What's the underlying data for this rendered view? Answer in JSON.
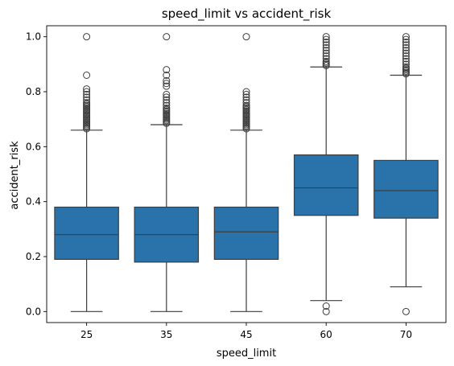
{
  "chart_data": {
    "type": "box",
    "title": "speed_limit vs accident_risk",
    "xlabel": "speed_limit",
    "ylabel": "accident_risk",
    "categories": [
      "25",
      "35",
      "45",
      "60",
      "70"
    ],
    "ylim": [
      -0.04,
      1.04
    ],
    "yticks": [
      "0.0",
      "0.2",
      "0.4",
      "0.6",
      "0.8",
      "1.0"
    ],
    "ytick_values": [
      0.0,
      0.2,
      0.4,
      0.6,
      0.8,
      1.0
    ],
    "grid": false,
    "legend": "none",
    "box_color": "#2a73aa",
    "edge_color": "#3d3d3d",
    "boxes": [
      {
        "category": "25",
        "whisker_low": 0.0,
        "q1": 0.19,
        "median": 0.28,
        "q3": 0.38,
        "whisker_high": 0.66,
        "outliers": [
          0.665,
          0.67,
          0.675,
          0.68,
          0.685,
          0.69,
          0.695,
          0.7,
          0.705,
          0.71,
          0.715,
          0.72,
          0.725,
          0.73,
          0.735,
          0.74,
          0.745,
          0.75,
          0.755,
          0.76,
          0.77,
          0.78,
          0.79,
          0.8,
          0.81,
          0.86,
          1.0
        ]
      },
      {
        "category": "35",
        "whisker_low": 0.0,
        "q1": 0.18,
        "median": 0.28,
        "q3": 0.38,
        "whisker_high": 0.68,
        "outliers": [
          0.685,
          0.69,
          0.695,
          0.7,
          0.705,
          0.71,
          0.715,
          0.72,
          0.725,
          0.73,
          0.735,
          0.74,
          0.75,
          0.76,
          0.77,
          0.78,
          0.79,
          0.82,
          0.83,
          0.84,
          0.86,
          0.88,
          1.0
        ]
      },
      {
        "category": "45",
        "whisker_low": 0.0,
        "q1": 0.19,
        "median": 0.29,
        "q3": 0.38,
        "whisker_high": 0.66,
        "outliers": [
          0.665,
          0.67,
          0.675,
          0.68,
          0.685,
          0.69,
          0.695,
          0.7,
          0.705,
          0.71,
          0.715,
          0.72,
          0.725,
          0.73,
          0.735,
          0.74,
          0.745,
          0.75,
          0.76,
          0.77,
          0.78,
          0.79,
          0.8,
          1.0
        ]
      },
      {
        "category": "60",
        "whisker_low": 0.04,
        "q1": 0.35,
        "median": 0.45,
        "q3": 0.57,
        "whisker_high": 0.89,
        "outliers": [
          0.0,
          0.02,
          0.895,
          0.9,
          0.905,
          0.91,
          0.92,
          0.93,
          0.94,
          0.95,
          0.96,
          0.97,
          0.98,
          0.99,
          1.0
        ]
      },
      {
        "category": "70",
        "whisker_low": 0.09,
        "q1": 0.34,
        "median": 0.44,
        "q3": 0.55,
        "whisker_high": 0.86,
        "outliers": [
          0.0,
          0.865,
          0.87,
          0.875,
          0.88,
          0.885,
          0.89,
          0.9,
          0.91,
          0.92,
          0.93,
          0.94,
          0.95,
          0.96,
          0.97,
          0.98,
          0.99,
          1.0
        ]
      }
    ]
  }
}
